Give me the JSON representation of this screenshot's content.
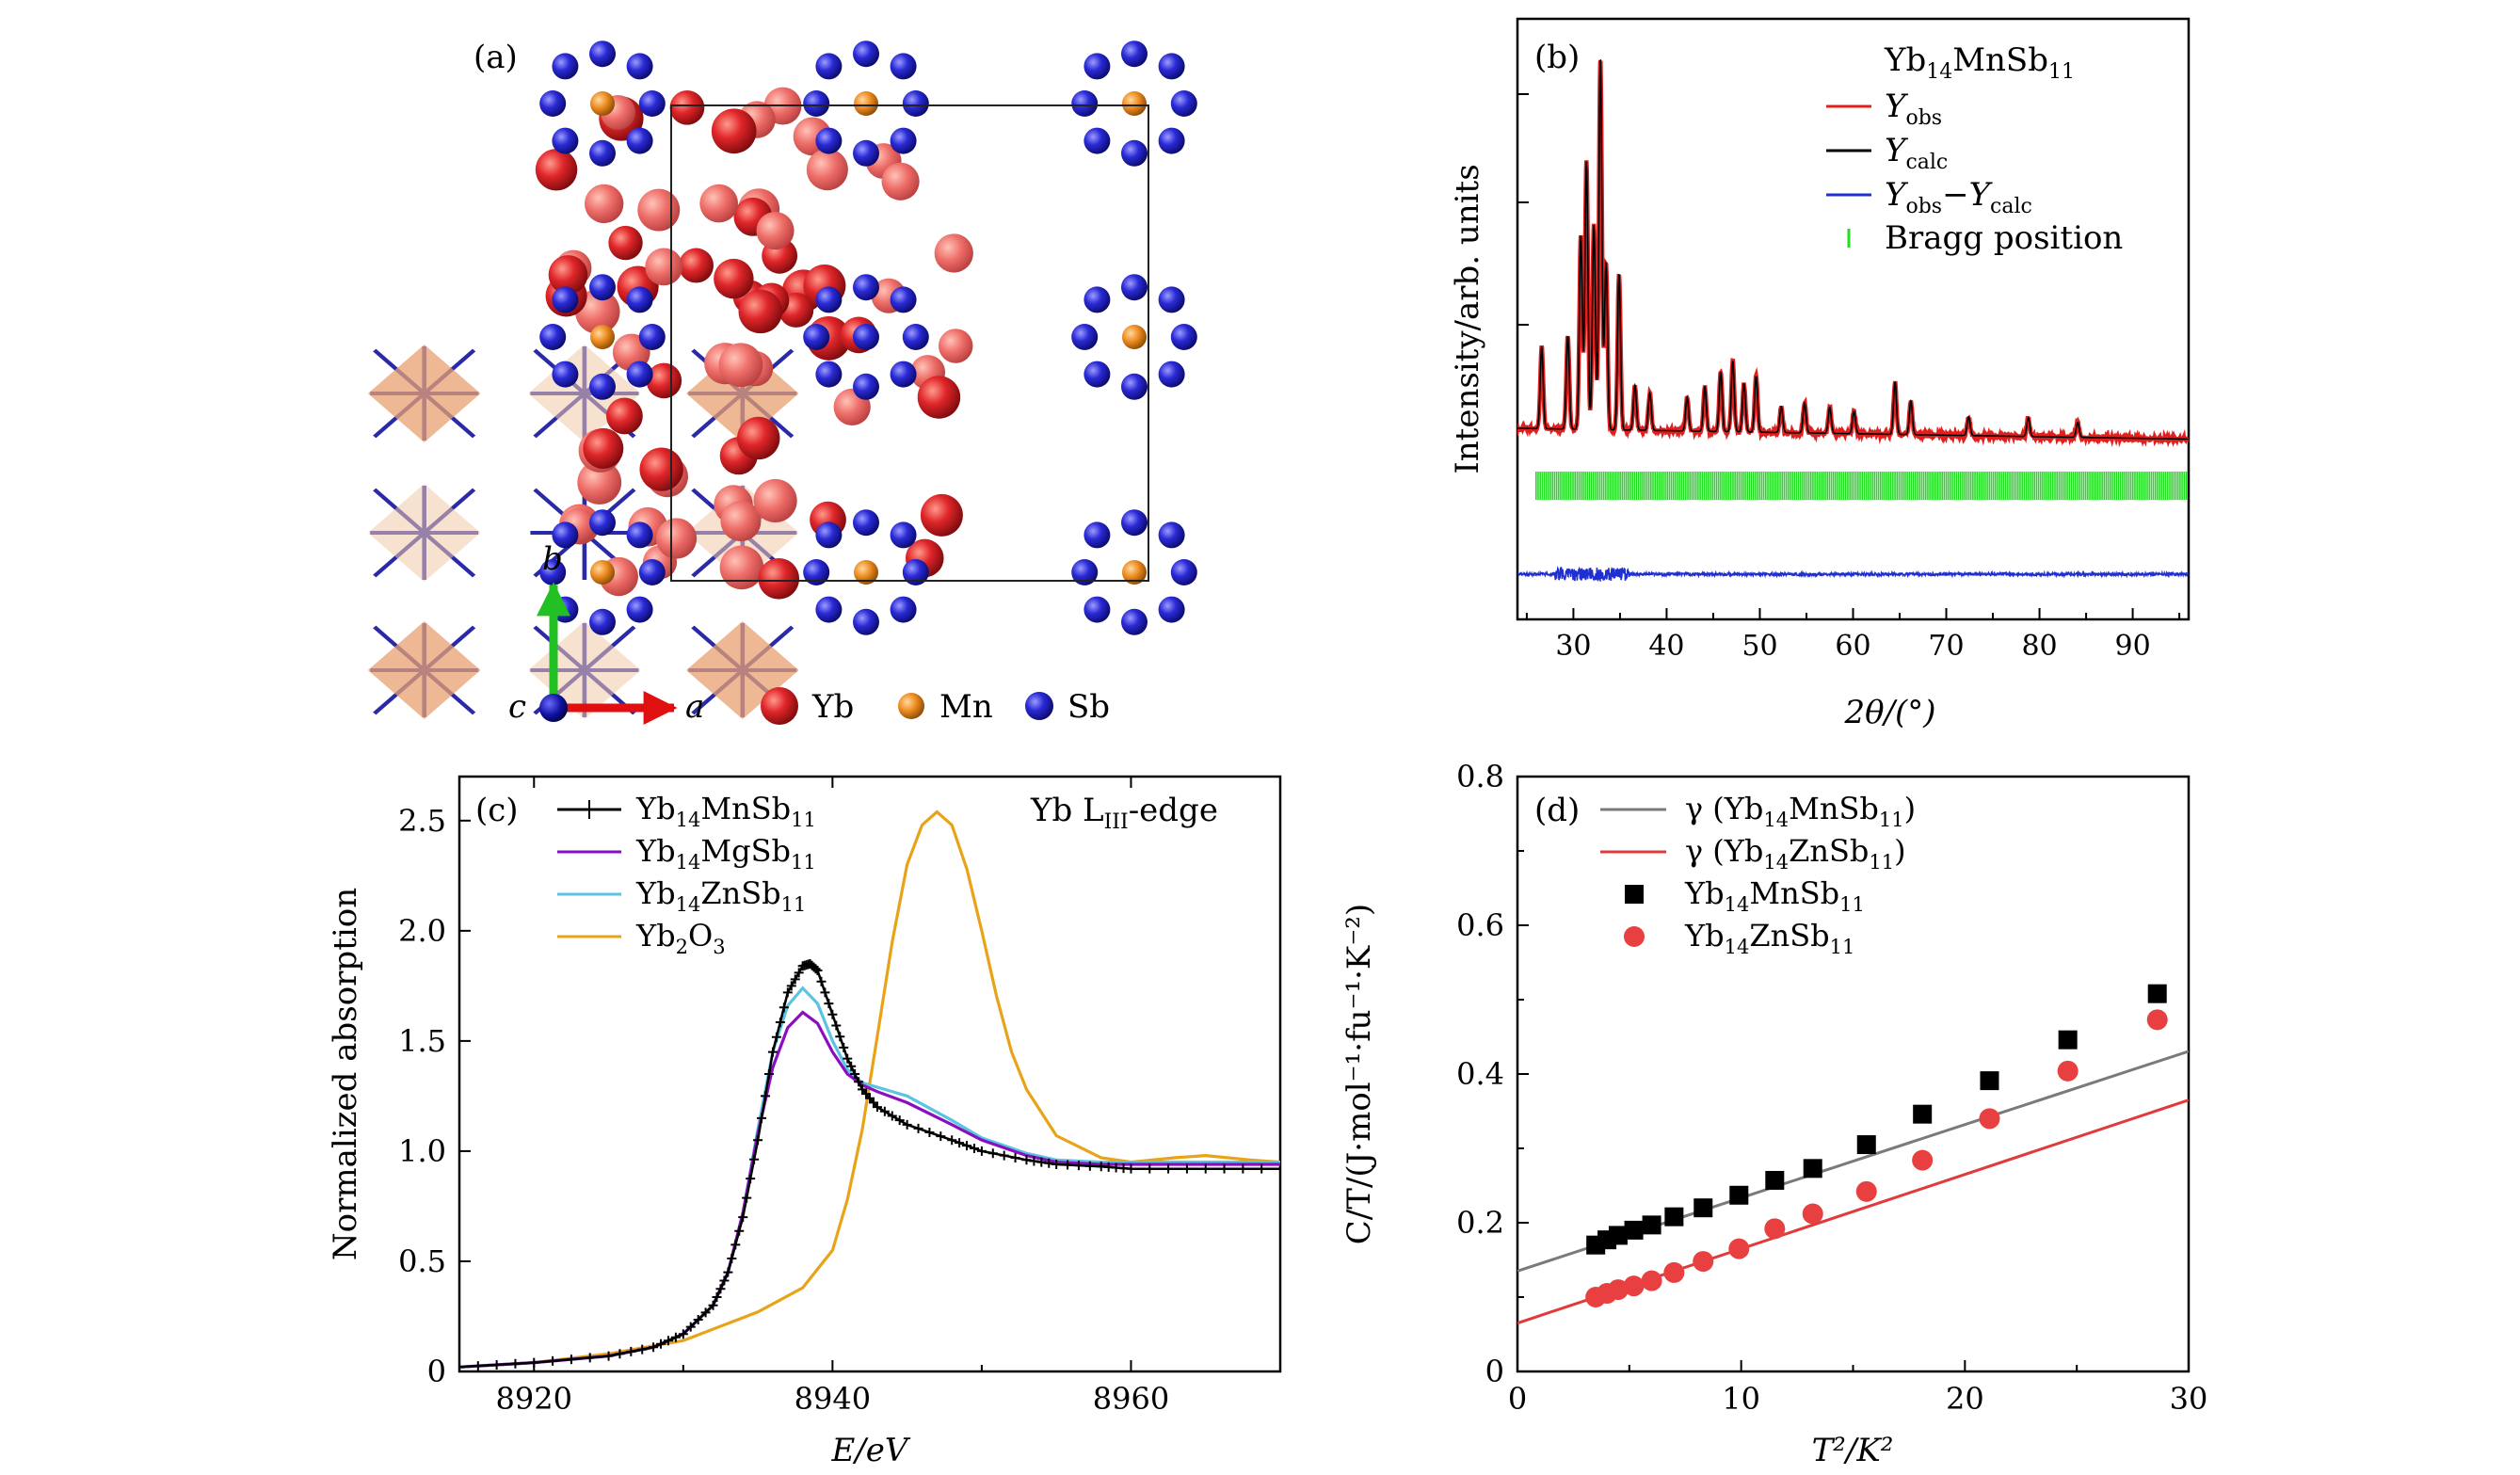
{
  "panels": {
    "a": {
      "tag": "(a)",
      "legend": [
        {
          "name": "Yb",
          "color": "#d8262a"
        },
        {
          "name": "Mn",
          "color": "#e8821a"
        },
        {
          "name": "Sb",
          "color": "#2424c8"
        }
      ],
      "axes": {
        "c": "c",
        "a": "a",
        "b": "b"
      }
    },
    "b": {
      "tag": "(b)",
      "compound": {
        "base": "Yb",
        "s1": "14",
        "mid": "MnSb",
        "s2": "11"
      },
      "legend": [
        {
          "label": "Y",
          "sub": "obs",
          "color": "#e0201e"
        },
        {
          "label": "Y",
          "sub": "calc",
          "color": "#000000"
        },
        {
          "label": "Y",
          "sub": "obs",
          "label2": "−Y",
          "sub2": "calc",
          "color": "#1f2fd0"
        },
        {
          "label": "Bragg position",
          "color": "#22dd22"
        }
      ],
      "xlabel": "2θ/(°)",
      "ylabel": "Intensity/arb. units"
    },
    "c": {
      "tag": "(c)",
      "annotation": {
        "pre": "Yb L",
        "sub": "III",
        "post": "-edge"
      },
      "xlabel": "E/eV",
      "ylabel": "Normalized absorption"
    },
    "d": {
      "tag": "(d)",
      "xlabel": "T²/K²",
      "ylabel": "C/T/(J·mol⁻¹·fu⁻¹·K⁻²)"
    }
  },
  "chart_data": [
    {
      "type": "line",
      "panel": "b",
      "xlim": [
        24,
        96
      ],
      "xticks": [
        30,
        40,
        50,
        60,
        70,
        80,
        90
      ],
      "peaks": [
        {
          "x": 26.6,
          "h": 0.22
        },
        {
          "x": 29.4,
          "h": 0.25
        },
        {
          "x": 30.8,
          "h": 0.52
        },
        {
          "x": 31.4,
          "h": 0.72
        },
        {
          "x": 32.2,
          "h": 0.55
        },
        {
          "x": 32.9,
          "h": 1.0
        },
        {
          "x": 33.5,
          "h": 0.45
        },
        {
          "x": 34.9,
          "h": 0.42
        },
        {
          "x": 36.6,
          "h": 0.12
        },
        {
          "x": 38.2,
          "h": 0.1
        },
        {
          "x": 42.2,
          "h": 0.09
        },
        {
          "x": 44.1,
          "h": 0.12
        },
        {
          "x": 45.8,
          "h": 0.16
        },
        {
          "x": 47.1,
          "h": 0.19
        },
        {
          "x": 48.3,
          "h": 0.13
        },
        {
          "x": 49.6,
          "h": 0.15
        },
        {
          "x": 52.3,
          "h": 0.07
        },
        {
          "x": 54.8,
          "h": 0.08
        },
        {
          "x": 57.5,
          "h": 0.07
        },
        {
          "x": 60.1,
          "h": 0.06
        },
        {
          "x": 64.5,
          "h": 0.14
        },
        {
          "x": 66.2,
          "h": 0.09
        },
        {
          "x": 72.4,
          "h": 0.05
        },
        {
          "x": 78.8,
          "h": 0.05
        },
        {
          "x": 84.1,
          "h": 0.04
        }
      ]
    },
    {
      "type": "line",
      "panel": "c",
      "xlim": [
        8915,
        8970
      ],
      "ylim": [
        0,
        2.7
      ],
      "xticks": [
        8920,
        8940,
        8960
      ],
      "yticks": [
        0,
        0.5,
        1.0,
        1.5,
        2.0,
        2.5
      ],
      "ytick_labels": [
        "0",
        "0.5",
        "1.0",
        "1.5",
        "2.0",
        "2.5"
      ],
      "series": [
        {
          "name": {
            "base": "Yb",
            "s1": "14",
            "mid": "MnSb",
            "s2": "11"
          },
          "color": "#000000",
          "marker": "+",
          "x": [
            8915,
            8920,
            8925,
            8928,
            8930,
            8932,
            8933,
            8934,
            8935,
            8936,
            8937,
            8938,
            8938.5,
            8939,
            8940,
            8941,
            8942,
            8943,
            8945,
            8948,
            8950,
            8953,
            8955,
            8958,
            8960,
            8965,
            8970
          ],
          "y": [
            0.02,
            0.04,
            0.07,
            0.11,
            0.17,
            0.3,
            0.45,
            0.7,
            1.05,
            1.45,
            1.72,
            1.84,
            1.85,
            1.82,
            1.62,
            1.42,
            1.28,
            1.2,
            1.12,
            1.05,
            1.0,
            0.96,
            0.94,
            0.93,
            0.92,
            0.92,
            0.92
          ]
        },
        {
          "name": {
            "base": "Yb",
            "s1": "14",
            "mid": "MgSb",
            "s2": "11"
          },
          "color": "#8a0ec0",
          "x": [
            8915,
            8920,
            8925,
            8928,
            8930,
            8932,
            8933,
            8934,
            8935,
            8936,
            8937,
            8938,
            8939,
            8940,
            8941,
            8942,
            8943,
            8945,
            8948,
            8950,
            8953,
            8955,
            8958,
            8960,
            8965,
            8970
          ],
          "y": [
            0.02,
            0.04,
            0.07,
            0.11,
            0.17,
            0.3,
            0.45,
            0.72,
            1.08,
            1.38,
            1.56,
            1.63,
            1.58,
            1.45,
            1.35,
            1.3,
            1.27,
            1.22,
            1.12,
            1.05,
            0.98,
            0.95,
            0.94,
            0.94,
            0.94,
            0.94
          ]
        },
        {
          "name": {
            "base": "Yb",
            "s1": "14",
            "mid": "ZnSb",
            "s2": "11"
          },
          "color": "#5bc4e0",
          "x": [
            8915,
            8920,
            8925,
            8928,
            8930,
            8932,
            8933,
            8934,
            8935,
            8936,
            8937,
            8938,
            8939,
            8940,
            8941,
            8942,
            8943,
            8945,
            8948,
            8950,
            8953,
            8955,
            8958,
            8960,
            8965,
            8970
          ],
          "y": [
            0.02,
            0.04,
            0.07,
            0.11,
            0.17,
            0.3,
            0.45,
            0.72,
            1.1,
            1.45,
            1.66,
            1.74,
            1.67,
            1.5,
            1.37,
            1.31,
            1.29,
            1.25,
            1.14,
            1.06,
            0.99,
            0.96,
            0.95,
            0.95,
            0.95,
            0.95
          ]
        },
        {
          "name": {
            "base": "Yb",
            "s1": "2",
            "mid": "O",
            "s2": "3"
          },
          "color": "#e8a318",
          "x": [
            8915,
            8920,
            8925,
            8930,
            8935,
            8938,
            8940,
            8941,
            8942,
            8943,
            8944,
            8945,
            8946,
            8947,
            8948,
            8949,
            8950,
            8951,
            8952,
            8953,
            8955,
            8958,
            8960,
            8963,
            8965,
            8968,
            8970
          ],
          "y": [
            0.02,
            0.04,
            0.08,
            0.14,
            0.27,
            0.38,
            0.55,
            0.78,
            1.1,
            1.52,
            1.95,
            2.3,
            2.48,
            2.54,
            2.48,
            2.28,
            2.0,
            1.7,
            1.45,
            1.28,
            1.07,
            0.97,
            0.95,
            0.97,
            0.98,
            0.96,
            0.95
          ]
        }
      ]
    },
    {
      "type": "scatter",
      "panel": "d",
      "xlim": [
        0,
        30
      ],
      "ylim": [
        0,
        0.8
      ],
      "xticks": [
        0,
        10,
        20,
        30
      ],
      "yticks": [
        0,
        0.2,
        0.4,
        0.6,
        0.8
      ],
      "ytick_labels": [
        "0",
        "0.2",
        "0.4",
        "0.6",
        "0.8"
      ],
      "lines": [
        {
          "name": {
            "pre": "γ (",
            "base": "Yb",
            "s1": "14",
            "mid": "MnSb",
            "s2": "11",
            "post": ")"
          },
          "color": "#7a7a7a",
          "intercept": 0.135,
          "slope": 0.00985
        },
        {
          "name": {
            "pre": "γ (",
            "base": "Yb",
            "s1": "14",
            "mid": "ZnSb",
            "s2": "11",
            "post": ")"
          },
          "color": "#e03a3a",
          "intercept": 0.065,
          "slope": 0.01
        }
      ],
      "series": [
        {
          "name": {
            "base": "Yb",
            "s1": "14",
            "mid": "MnSb",
            "s2": "11"
          },
          "marker": "square",
          "color": "#000000",
          "x": [
            3.5,
            4.0,
            4.5,
            5.2,
            6.0,
            7.0,
            8.3,
            9.9,
            11.5,
            13.2,
            15.6,
            18.1,
            21.1,
            24.6,
            28.6
          ],
          "y": [
            0.17,
            0.177,
            0.183,
            0.19,
            0.197,
            0.208,
            0.22,
            0.237,
            0.257,
            0.273,
            0.305,
            0.346,
            0.391,
            0.446,
            0.508
          ]
        },
        {
          "name": {
            "base": "Yb",
            "s1": "14",
            "mid": "ZnSb",
            "s2": "11"
          },
          "marker": "circle",
          "color": "#e84040",
          "x": [
            3.5,
            4.0,
            4.5,
            5.2,
            6.0,
            7.0,
            8.3,
            9.9,
            11.5,
            13.2,
            15.6,
            18.1,
            21.1,
            24.6,
            28.6
          ],
          "y": [
            0.1,
            0.105,
            0.11,
            0.115,
            0.122,
            0.133,
            0.148,
            0.165,
            0.192,
            0.212,
            0.242,
            0.284,
            0.34,
            0.404,
            0.473
          ]
        }
      ]
    }
  ]
}
